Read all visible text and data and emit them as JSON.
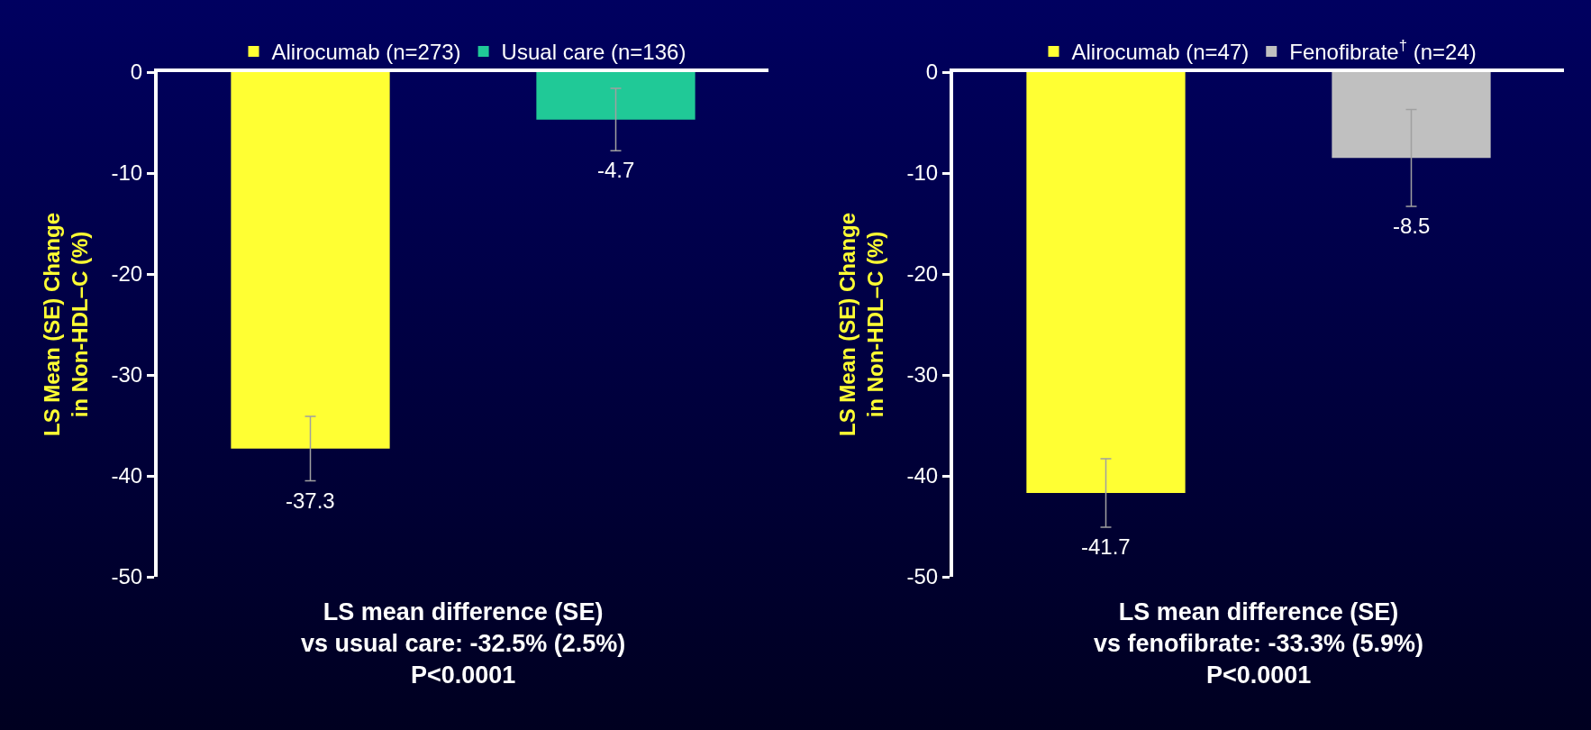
{
  "chart_data": [
    {
      "type": "bar",
      "categories": [
        null,
        null
      ],
      "ylabel": "LS Mean (SE) Change\nin Non-HDL–C (%)",
      "ylim": [
        -50,
        0
      ],
      "yticks": [
        0,
        -10,
        -20,
        -30,
        -40,
        -50
      ],
      "legend": "top",
      "data_labels": true,
      "grid": false,
      "series": [
        {
          "name": "Alirocumab (n=273)",
          "color": "#ffff33",
          "values": [
            -37.3,
            null
          ],
          "errors": [
            3.2,
            null
          ]
        },
        {
          "name": "Usual care (n=136)",
          "color": "#20c997",
          "values": [
            null,
            -4.7
          ],
          "errors": [
            null,
            3.1
          ]
        }
      ],
      "annotations": [
        "LS mean difference (SE)\nvs usual care: -32.5% (2.5%)\nP<0.0001"
      ]
    },
    {
      "type": "bar",
      "categories": [
        null,
        null
      ],
      "ylabel": "LS Mean (SE) Change\nin Non-HDL–C (%)",
      "ylim": [
        -50,
        0
      ],
      "yticks": [
        0,
        -10,
        -20,
        -30,
        -40,
        -50
      ],
      "legend": "top",
      "data_labels": true,
      "grid": false,
      "series": [
        {
          "name": "Alirocumab (n=47)",
          "color": "#ffff33",
          "values": [
            -41.7,
            null
          ],
          "errors": [
            3.4,
            null
          ]
        },
        {
          "name": "Fenofibrate$^{†}$ (n=24)",
          "color": "#c0c0c0",
          "values": [
            null,
            -8.5
          ],
          "errors": [
            null,
            4.8
          ]
        }
      ],
      "annotations": [
        "LS mean difference (SE)\nvs fenofibrate: -33.3% (5.9%)\nP<0.0001"
      ]
    }
  ]
}
